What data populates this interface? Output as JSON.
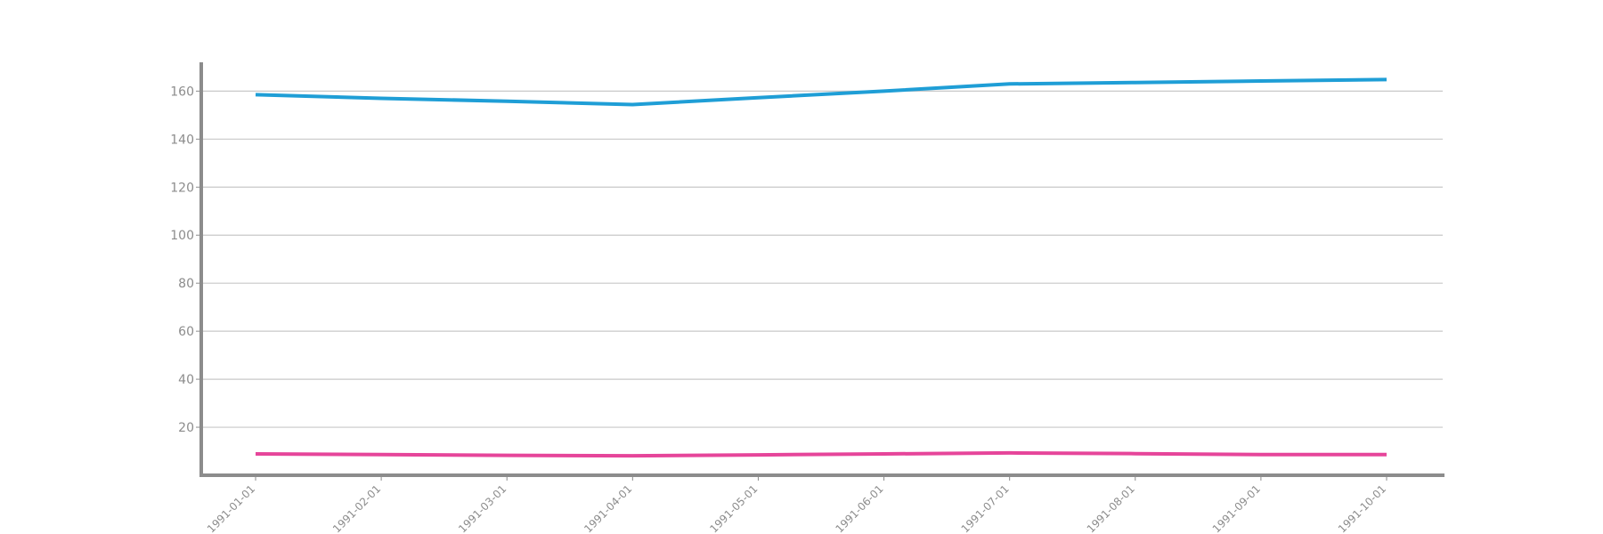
{
  "chart_data": {
    "type": "line",
    "title": "",
    "xlabel": "",
    "ylabel": "",
    "x": [
      "1991-01-01",
      "1991-02-01",
      "1991-03-01",
      "1991-04-01",
      "1991-05-01",
      "1991-06-01",
      "1991-07-01",
      "1991-08-01",
      "1991-09-01",
      "1991-10-01"
    ],
    "series": [
      {
        "color": "#1f9ed6",
        "values": [
          158.5,
          157.0,
          155.8,
          154.4,
          157.3,
          160.0,
          163.0,
          163.6,
          164.2,
          164.8
        ]
      },
      {
        "color": "#e6459a",
        "values": [
          8.9,
          8.6,
          8.3,
          8.1,
          8.5,
          8.9,
          9.3,
          9.0,
          8.6,
          8.6
        ]
      }
    ],
    "ylim": [
      0,
      172
    ],
    "yticks": [
      20,
      40,
      60,
      80,
      100,
      120,
      140,
      160
    ],
    "grid": true,
    "legend": "none"
  }
}
